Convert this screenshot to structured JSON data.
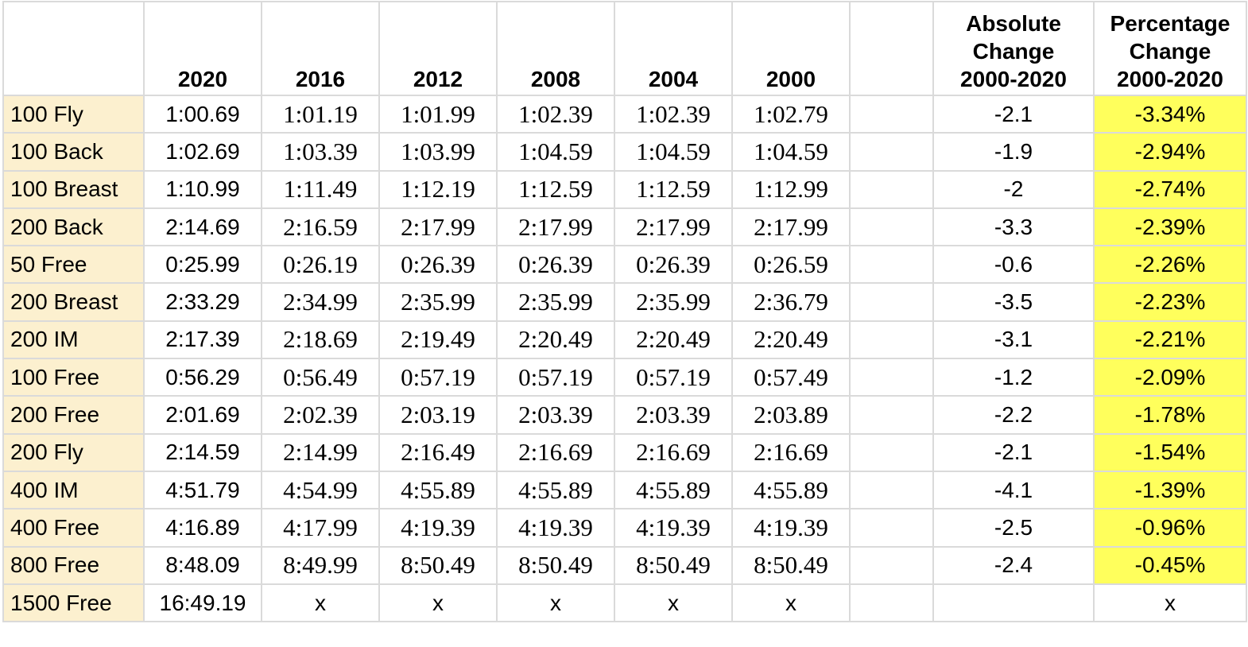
{
  "header": {
    "years": [
      "2020",
      "2016",
      "2012",
      "2008",
      "2004",
      "2000"
    ],
    "absolute_change": [
      "Absolute",
      "Change",
      "2000-2020"
    ],
    "percentage_change": [
      "Percentage",
      "Change",
      "2000-2020"
    ]
  },
  "rows": [
    {
      "event": "100 Fly",
      "times": [
        "1:00.69",
        "1:01.19",
        "1:01.99",
        "1:02.39",
        "1:02.39",
        "1:02.79"
      ],
      "abs": "-2.1",
      "pct": "-3.34%"
    },
    {
      "event": "100 Back",
      "times": [
        "1:02.69",
        "1:03.39",
        "1:03.99",
        "1:04.59",
        "1:04.59",
        "1:04.59"
      ],
      "abs": "-1.9",
      "pct": "-2.94%"
    },
    {
      "event": "100 Breast",
      "times": [
        "1:10.99",
        "1:11.49",
        "1:12.19",
        "1:12.59",
        "1:12.59",
        "1:12.99"
      ],
      "abs": "-2",
      "pct": "-2.74%"
    },
    {
      "event": "200 Back",
      "times": [
        "2:14.69",
        "2:16.59",
        "2:17.99",
        "2:17.99",
        "2:17.99",
        "2:17.99"
      ],
      "abs": "-3.3",
      "pct": "-2.39%"
    },
    {
      "event": "50 Free",
      "times": [
        "0:25.99",
        "0:26.19",
        "0:26.39",
        "0:26.39",
        "0:26.39",
        "0:26.59"
      ],
      "abs": "-0.6",
      "pct": "-2.26%"
    },
    {
      "event": "200 Breast",
      "times": [
        "2:33.29",
        "2:34.99",
        "2:35.99",
        "2:35.99",
        "2:35.99",
        "2:36.79"
      ],
      "abs": "-3.5",
      "pct": "-2.23%"
    },
    {
      "event": "200 IM",
      "times": [
        "2:17.39",
        "2:18.69",
        "2:19.49",
        "2:20.49",
        "2:20.49",
        "2:20.49"
      ],
      "abs": "-3.1",
      "pct": "-2.21%"
    },
    {
      "event": "100 Free",
      "times": [
        "0:56.29",
        "0:56.49",
        "0:57.19",
        "0:57.19",
        "0:57.19",
        "0:57.49"
      ],
      "abs": "-1.2",
      "pct": "-2.09%"
    },
    {
      "event": "200 Free",
      "times": [
        "2:01.69",
        "2:02.39",
        "2:03.19",
        "2:03.39",
        "2:03.39",
        "2:03.89"
      ],
      "abs": "-2.2",
      "pct": "-1.78%"
    },
    {
      "event": "200 Fly",
      "times": [
        "2:14.59",
        "2:14.99",
        "2:16.49",
        "2:16.69",
        "2:16.69",
        "2:16.69"
      ],
      "abs": "-2.1",
      "pct": "-1.54%"
    },
    {
      "event": "400 IM",
      "times": [
        "4:51.79",
        "4:54.99",
        "4:55.89",
        "4:55.89",
        "4:55.89",
        "4:55.89"
      ],
      "abs": "-4.1",
      "pct": "-1.39%"
    },
    {
      "event": "400 Free",
      "times": [
        "4:16.89",
        "4:17.99",
        "4:19.39",
        "4:19.39",
        "4:19.39",
        "4:19.39"
      ],
      "abs": "-2.5",
      "pct": "-0.96%"
    },
    {
      "event": "800 Free",
      "times": [
        "8:48.09",
        "8:49.99",
        "8:50.49",
        "8:50.49",
        "8:50.49",
        "8:50.49"
      ],
      "abs": "-2.4",
      "pct": "-0.45%"
    },
    {
      "event": "1500 Free",
      "times": [
        "16:49.19",
        "x",
        "x",
        "x",
        "x",
        "x"
      ],
      "abs": "",
      "pct": "x"
    }
  ],
  "colors": {
    "event_column_bg": "#fcf0cf",
    "percentage_highlight": "#ffff5c",
    "grid": "#dadada"
  }
}
